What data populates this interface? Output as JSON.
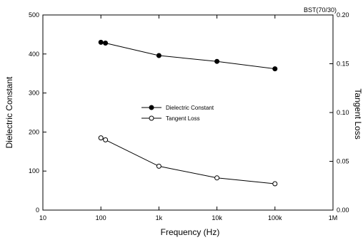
{
  "chart_data": {
    "type": "line",
    "title": "BST(70/30)",
    "xlabel": "Frequency (Hz)",
    "ylabel": "Dielectric Constant",
    "y2label": "Tangent Loss",
    "x_scale": "log",
    "xlim": [
      10,
      1000000
    ],
    "ylim": [
      0,
      500
    ],
    "y2lim": [
      0.0,
      0.2
    ],
    "x_ticks": [
      "10",
      "100",
      "1k",
      "10k",
      "100k",
      "1M"
    ],
    "y_ticks": [
      "0",
      "100",
      "200",
      "300",
      "400",
      "500"
    ],
    "y2_ticks": [
      "0.00",
      "0.05",
      "0.10",
      "0.15",
      "0.20"
    ],
    "series": [
      {
        "name": "Dielectric Constant",
        "axis": "left",
        "marker": "filled-circle",
        "x": [
          100,
          120,
          1000,
          10000,
          100000
        ],
        "y": [
          430,
          428,
          396,
          381,
          362
        ]
      },
      {
        "name": "Tangent Loss",
        "axis": "right",
        "marker": "open-circle",
        "x": [
          100,
          120,
          1000,
          10000,
          100000
        ],
        "y": [
          0.074,
          0.072,
          0.045,
          0.033,
          0.027
        ]
      }
    ],
    "legend_position": "center"
  }
}
